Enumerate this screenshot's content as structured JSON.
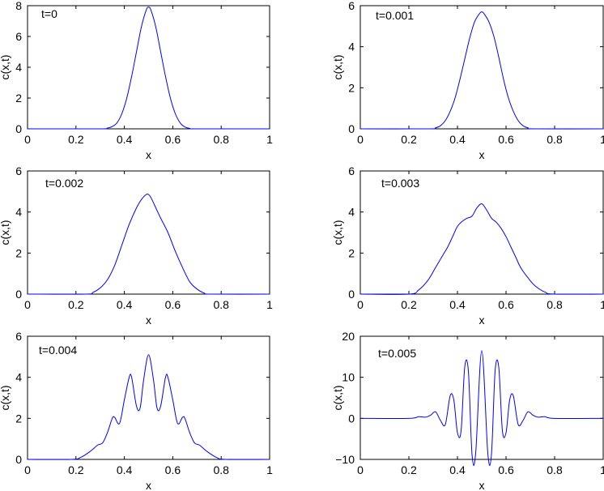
{
  "chart_data": [
    {
      "type": "line",
      "annotation": "t=0",
      "xlabel": "x",
      "ylabel": "c(x,t)",
      "xlim": [
        0,
        1
      ],
      "ylim": [
        0,
        8
      ],
      "xticks": [
        "0",
        "0.2",
        "0.4",
        "0.6",
        "0.8",
        "1"
      ],
      "yticks": [
        "0",
        "2",
        "4",
        "6",
        "8"
      ],
      "line_color": "#0000ff",
      "grid": false,
      "series": [
        {
          "x": [
            0,
            0.3,
            0.33,
            0.35,
            0.37,
            0.39,
            0.41,
            0.43,
            0.45,
            0.47,
            0.49,
            0.5,
            0.51,
            0.53,
            0.55,
            0.57,
            0.59,
            0.61,
            0.63,
            0.65,
            0.67,
            0.7,
            1
          ],
          "y": [
            0,
            0,
            0.05,
            0.15,
            0.4,
            1.0,
            2.0,
            3.4,
            5.0,
            6.6,
            7.7,
            7.9,
            7.7,
            6.6,
            5.0,
            3.4,
            2.0,
            1.0,
            0.4,
            0.12,
            0.03,
            0,
            0
          ]
        }
      ]
    },
    {
      "type": "line",
      "annotation": "t=0.001",
      "xlabel": "x",
      "ylabel": "c(x,t)",
      "xlim": [
        0,
        1
      ],
      "ylim": [
        0,
        6
      ],
      "xticks": [
        "0",
        "0.2",
        "0.4",
        "0.6",
        "0.8",
        "1"
      ],
      "yticks": [
        "0",
        "2",
        "4",
        "6"
      ],
      "line_color": "#0000ff",
      "grid": false,
      "series": [
        {
          "x": [
            0,
            0.28,
            0.31,
            0.33,
            0.35,
            0.37,
            0.39,
            0.41,
            0.43,
            0.45,
            0.47,
            0.49,
            0.5,
            0.51,
            0.53,
            0.55,
            0.57,
            0.59,
            0.61,
            0.63,
            0.65,
            0.67,
            0.69,
            0.72,
            1
          ],
          "y": [
            0,
            0,
            0.05,
            0.15,
            0.4,
            0.85,
            1.5,
            2.4,
            3.4,
            4.4,
            5.2,
            5.6,
            5.7,
            5.6,
            5.2,
            4.5,
            3.5,
            2.4,
            1.5,
            0.85,
            0.4,
            0.15,
            0.05,
            0,
            0
          ]
        }
      ]
    },
    {
      "type": "line",
      "annotation": "t=0.002",
      "xlabel": "x",
      "ylabel": "c(x,t)",
      "xlim": [
        0,
        1
      ],
      "ylim": [
        0,
        6
      ],
      "xticks": [
        "0",
        "0.2",
        "0.4",
        "0.6",
        "0.8",
        "1"
      ],
      "yticks": [
        "0",
        "2",
        "4",
        "6"
      ],
      "line_color": "#0000ff",
      "grid": false,
      "series": [
        {
          "x": [
            0,
            0.24,
            0.27,
            0.3,
            0.33,
            0.36,
            0.39,
            0.42,
            0.45,
            0.47,
            0.49,
            0.5,
            0.51,
            0.53,
            0.55,
            0.58,
            0.61,
            0.64,
            0.67,
            0.7,
            0.73,
            0.76,
            1
          ],
          "y": [
            0,
            0,
            0.08,
            0.3,
            0.7,
            1.4,
            2.4,
            3.4,
            4.2,
            4.6,
            4.85,
            4.85,
            4.7,
            4.2,
            3.7,
            3.0,
            2.1,
            1.3,
            0.6,
            0.25,
            0.05,
            0,
            0
          ]
        }
      ]
    },
    {
      "type": "line",
      "annotation": "t=0.003",
      "xlabel": "x",
      "ylabel": "c(x,t)",
      "xlim": [
        0,
        1
      ],
      "ylim": [
        0,
        6
      ],
      "xticks": [
        "0",
        "0.2",
        "0.4",
        "0.6",
        "0.8",
        "1"
      ],
      "yticks": [
        "0",
        "2",
        "4",
        "6"
      ],
      "line_color": "#0000ff",
      "grid": false,
      "series": [
        {
          "x": [
            0,
            0.2,
            0.24,
            0.28,
            0.31,
            0.34,
            0.36,
            0.38,
            0.4,
            0.42,
            0.44,
            0.46,
            0.48,
            0.5,
            0.52,
            0.54,
            0.56,
            0.58,
            0.6,
            0.62,
            0.64,
            0.66,
            0.69,
            0.72,
            0.76,
            0.8,
            1
          ],
          "y": [
            0,
            0,
            0.2,
            0.7,
            1.3,
            1.9,
            2.3,
            2.8,
            3.3,
            3.55,
            3.7,
            3.8,
            4.2,
            4.4,
            4.1,
            3.7,
            3.5,
            3.2,
            2.8,
            2.3,
            1.8,
            1.3,
            0.8,
            0.4,
            0.1,
            0,
            0
          ]
        }
      ]
    },
    {
      "type": "line",
      "annotation": "t=0.004",
      "xlabel": "x",
      "ylabel": "c(x,t)",
      "xlim": [
        0,
        1
      ],
      "ylim": [
        0,
        6
      ],
      "xticks": [
        "0",
        "0.2",
        "0.4",
        "0.6",
        "0.8",
        "1"
      ],
      "yticks": [
        "0",
        "2",
        "4",
        "6"
      ],
      "line_color": "#0000ff",
      "grid": false,
      "series": [
        {
          "x": [
            0,
            0.18,
            0.22,
            0.26,
            0.29,
            0.31,
            0.33,
            0.35,
            0.36,
            0.38,
            0.4,
            0.42,
            0.43,
            0.45,
            0.465,
            0.48,
            0.5,
            0.52,
            0.535,
            0.55,
            0.57,
            0.58,
            0.6,
            0.62,
            0.64,
            0.65,
            0.67,
            0.69,
            0.71,
            0.74,
            0.78,
            0.82,
            1
          ],
          "y": [
            0,
            0,
            0.1,
            0.4,
            0.7,
            0.8,
            1.3,
            2.0,
            2.05,
            1.75,
            2.9,
            4.0,
            4.0,
            2.6,
            2.5,
            3.9,
            5.1,
            3.9,
            2.5,
            2.6,
            4.0,
            4.0,
            2.9,
            1.75,
            2.05,
            2.0,
            1.3,
            0.8,
            0.7,
            0.4,
            0.1,
            0,
            0
          ]
        }
      ]
    },
    {
      "type": "line",
      "annotation": "t=0.005",
      "xlabel": "x",
      "ylabel": "c(x,t)",
      "xlim": [
        0,
        1
      ],
      "ylim": [
        -10,
        20
      ],
      "xticks": [
        "0",
        "0.2",
        "0.4",
        "0.6",
        "0.8",
        "1"
      ],
      "yticks": [
        "−10",
        "0",
        "10",
        "20"
      ],
      "line_color": "#0000ff",
      "grid": false,
      "series": [
        {
          "x": [
            0,
            0.2,
            0.24,
            0.27,
            0.29,
            0.31,
            0.33,
            0.35,
            0.37,
            0.385,
            0.4,
            0.415,
            0.43,
            0.445,
            0.46,
            0.475,
            0.5,
            0.525,
            0.54,
            0.555,
            0.57,
            0.585,
            0.6,
            0.615,
            0.63,
            0.65,
            0.67,
            0.69,
            0.71,
            0.73,
            0.76,
            0.8,
            1
          ],
          "y": [
            0,
            0,
            0.4,
            0.3,
            0.8,
            1.6,
            -0.5,
            -1.5,
            5.5,
            4.5,
            -3.5,
            -3.0,
            12.5,
            11.5,
            -8.8,
            -8.5,
            16.5,
            -8.5,
            -8.8,
            11.5,
            12.5,
            -3.0,
            -3.5,
            4.5,
            5.5,
            -1.5,
            -0.5,
            1.6,
            0.8,
            0.3,
            0.4,
            0,
            0
          ]
        }
      ]
    }
  ]
}
